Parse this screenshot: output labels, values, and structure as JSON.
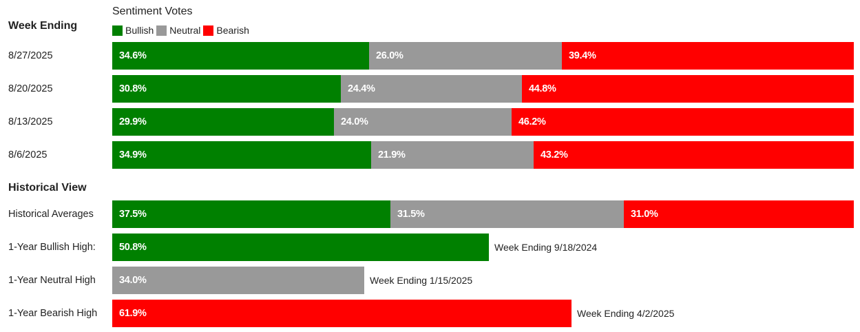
{
  "legend": {
    "title": "Sentiment Votes",
    "items": [
      {
        "label": "Bullish",
        "color": "#008000"
      },
      {
        "label": "Neutral",
        "color": "#999999"
      },
      {
        "label": "Bearish",
        "color": "#ff0000"
      }
    ]
  },
  "weekly_header": "Week Ending",
  "historical_header": "Historical View",
  "chart_data": {
    "type": "bar",
    "orientation": "horizontal",
    "stacked": true,
    "weekly": [
      {
        "label": "8/27/2025",
        "bullish": 34.6,
        "neutral": 26.0,
        "bearish": 39.4,
        "bullish_text": "34.6%",
        "neutral_text": "26.0%",
        "bearish_text": "39.4%"
      },
      {
        "label": "8/20/2025",
        "bullish": 30.8,
        "neutral": 24.4,
        "bearish": 44.8,
        "bullish_text": "30.8%",
        "neutral_text": "24.4%",
        "bearish_text": "44.8%"
      },
      {
        "label": "8/13/2025",
        "bullish": 29.9,
        "neutral": 24.0,
        "bearish": 46.2,
        "bullish_text": "29.9%",
        "neutral_text": "24.0%",
        "bearish_text": "46.2%"
      },
      {
        "label": "8/6/2025",
        "bullish": 34.9,
        "neutral": 21.9,
        "bearish": 43.2,
        "bullish_text": "34.9%",
        "neutral_text": "21.9%",
        "bearish_text": "43.2%"
      }
    ],
    "historical_averages": {
      "label": "Historical Averages",
      "bullish": 37.5,
      "neutral": 31.5,
      "bearish": 31.0,
      "bullish_text": "37.5%",
      "neutral_text": "31.5%",
      "bearish_text": "31.0%"
    },
    "highs": [
      {
        "label": "1-Year Bullish High:",
        "value": 50.8,
        "value_text": "50.8%",
        "note": "Week Ending 9/18/2024",
        "color": "#008000"
      },
      {
        "label": "1-Year Neutral High",
        "value": 34.0,
        "value_text": "34.0%",
        "note": "Week Ending 1/15/2025",
        "color": "#999999"
      },
      {
        "label": "1-Year Bearish High",
        "value": 61.9,
        "value_text": "61.9%",
        "note": "Week Ending 4/2/2025",
        "color": "#ff0000"
      }
    ]
  }
}
